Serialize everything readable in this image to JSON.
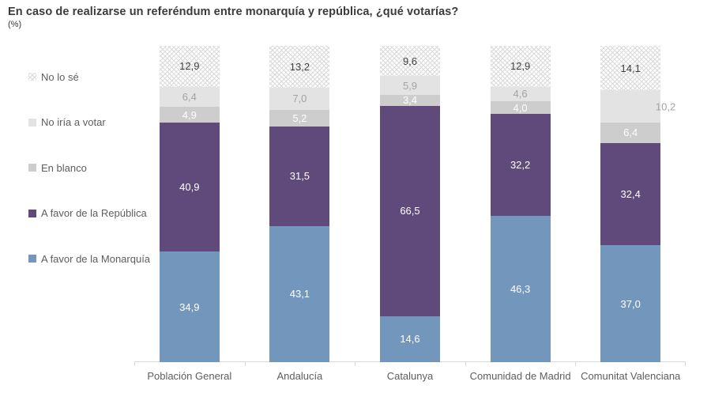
{
  "title": "En caso de realizarse un referéndum entre monarquía y república, ¿qué votarías?",
  "subtitle": "(%)",
  "colors": {
    "axis": "#d9d9d9",
    "category_label": "#605e5c",
    "legend_label": "#605e5c",
    "title": "#3b3b3b",
    "monarquia_blue": "#7397bc",
    "republica_purple": "#604a7b",
    "en_blanco_gray": "#cdcdcd",
    "no_iria_gray": "#e3e3e3",
    "pattern_gray": "#d9d9d9"
  },
  "chart_data": {
    "type": "bar",
    "variant": "100-percent-stacked-column",
    "title": "En caso de realizarse un referéndum entre monarquía y república, ¿qué votarías?",
    "ylabel": "(%)",
    "xlabel": "",
    "ylim": [
      0,
      100
    ],
    "grid": false,
    "legend_position": "left",
    "decimal_separator": ",",
    "categories": [
      "Población General",
      "Andalucía",
      "Catalunya",
      "Comunidad de Madrid",
      "Comunitat Valenciana"
    ],
    "series": [
      {
        "name": "No lo sé",
        "fill": "pattern-dotted",
        "color": "#d9d9d9",
        "label_color": "#404040",
        "values": [
          12.9,
          13.2,
          9.6,
          12.9,
          14.1
        ]
      },
      {
        "name": "No iría a votar",
        "fill": "solid",
        "color": "#e3e3e3",
        "label_color": "#a3a3a3",
        "values": [
          6.4,
          7.0,
          5.9,
          4.6,
          10.2
        ]
      },
      {
        "name": "En blanco",
        "fill": "solid",
        "color": "#cdcdcd",
        "label_color": "#ffffff",
        "values": [
          4.9,
          5.2,
          3.4,
          4.0,
          6.4
        ]
      },
      {
        "name": "A favor de la República",
        "fill": "solid",
        "color": "#604a7b",
        "label_color": "#ffffff",
        "values": [
          40.9,
          31.5,
          66.5,
          32.2,
          32.4
        ]
      },
      {
        "name": "A favor de la Monarquía",
        "fill": "solid",
        "color": "#7397bc",
        "label_color": "#ffffff",
        "values": [
          34.9,
          43.1,
          14.6,
          46.3,
          37.0
        ]
      }
    ],
    "label_overrides": [
      {
        "series": "No iría a votar",
        "category_index": 4,
        "position": "outside-right"
      }
    ]
  }
}
